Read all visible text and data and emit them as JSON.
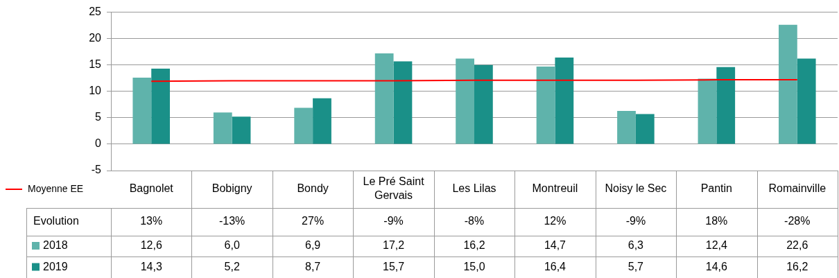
{
  "chart_data": {
    "type": "bar",
    "categories": [
      "Bagnolet",
      "Bobigny",
      "Bondy",
      "Le Pré Saint Gervais",
      "Les Lilas",
      "Montreuil",
      "Noisy le Sec",
      "Pantin",
      "Romainville"
    ],
    "series": [
      {
        "name": "2018",
        "color": "#5fb3ab",
        "values": [
          12.6,
          6.0,
          6.9,
          17.2,
          16.2,
          14.7,
          6.3,
          12.4,
          22.6
        ],
        "value_labels": [
          "12,6",
          "6,0",
          "6,9",
          "17,2",
          "16,2",
          "14,7",
          "6,3",
          "12,4",
          "22,6"
        ]
      },
      {
        "name": "2019",
        "color": "#1a9088",
        "values": [
          14.3,
          5.2,
          8.7,
          15.7,
          15.0,
          16.4,
          5.7,
          14.6,
          16.2
        ],
        "value_labels": [
          "14,3",
          "5,2",
          "8,7",
          "15,7",
          "15,0",
          "16,4",
          "5,7",
          "14,6",
          "16,2"
        ]
      },
      {
        "name": "Moyenne EE",
        "type": "line",
        "color": "#ff0000",
        "values": [
          11.9,
          12.0,
          12.0,
          12.0,
          12.1,
          12.1,
          12.1,
          12.2,
          12.2
        ]
      }
    ],
    "annotations": [
      "Evolution",
      "13%",
      "-13%",
      "27%",
      "-9%",
      "-8%",
      "12%",
      "-9%",
      "18%",
      "-28%"
    ],
    "ylim": [
      -5,
      25
    ],
    "yticks": [
      -5,
      0,
      5,
      10,
      15,
      20,
      25
    ],
    "grid": "y",
    "legend": "bottom left",
    "marker": "none",
    "line_style": "solid"
  }
}
